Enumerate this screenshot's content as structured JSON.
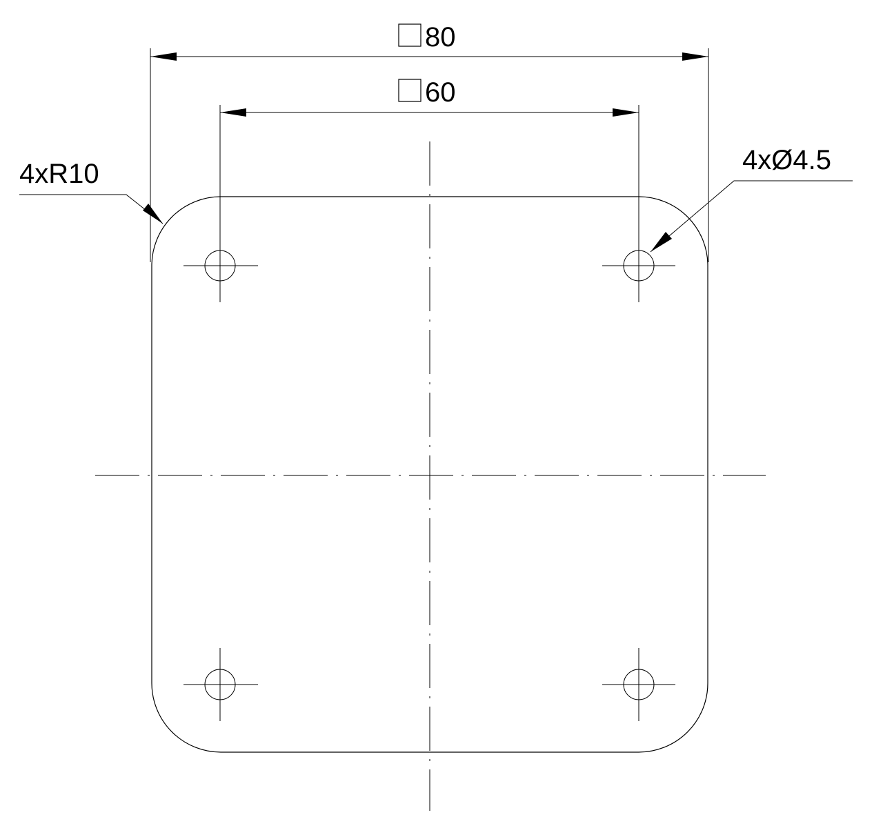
{
  "dimensions": {
    "outer_size": {
      "value": "80",
      "symbol": "square"
    },
    "hole_spacing": {
      "value": "60",
      "symbol": "square"
    }
  },
  "callouts": {
    "corner_radius": "4xR10",
    "hole_diameter": "4xØ4.5"
  },
  "line_color": "#000000",
  "background_color": "#ffffff"
}
